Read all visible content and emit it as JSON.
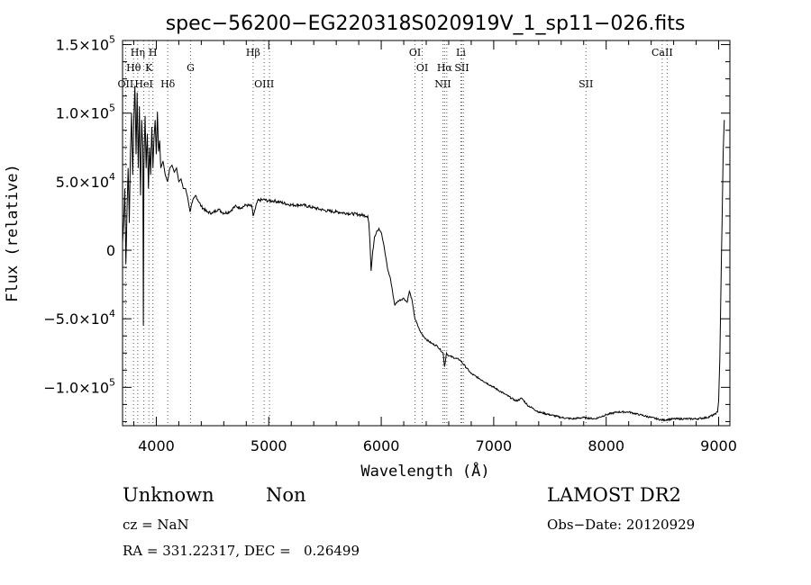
{
  "chart_data": {
    "type": "line",
    "title": "spec−56200−EG220318S020919V_1_sp11−026.fits",
    "xlabel": "Wavelength (Å)",
    "ylabel": "Flux (relative)",
    "xlim": [
      3700,
      9100
    ],
    "ylim": [
      -128000,
      153000
    ],
    "xticks": [
      4000,
      5000,
      6000,
      7000,
      8000,
      9000
    ],
    "yticks": [
      {
        "value": 150000,
        "label": "1.5×10",
        "exp": "5"
      },
      {
        "value": 100000,
        "label": "1.0×10",
        "exp": "5"
      },
      {
        "value": 50000,
        "label": "5.0×10",
        "exp": "4"
      },
      {
        "value": 0,
        "label": "0",
        "exp": ""
      },
      {
        "value": -50000,
        "label": "−5.0×10",
        "exp": "4"
      },
      {
        "value": -100000,
        "label": "−1.0×10",
        "exp": "5"
      }
    ],
    "lines": [
      {
        "wl": 3727,
        "label": "OII",
        "row": 3
      },
      {
        "wl": 3798,
        "label": "Hθ",
        "row": 2
      },
      {
        "wl": 3835,
        "label": "Hη",
        "row": 1
      },
      {
        "wl": 3889,
        "label": "HeI",
        "row": 3
      },
      {
        "wl": 3934,
        "label": "K",
        "row": 2
      },
      {
        "wl": 3970,
        "label": "H",
        "row": 1
      },
      {
        "wl": 4102,
        "label": "Hδ",
        "row": 3
      },
      {
        "wl": 4305,
        "label": "G",
        "row": 2
      },
      {
        "wl": 4861,
        "label": "Hβ",
        "row": 1
      },
      {
        "wl": 4959,
        "label": "OIII",
        "row": 3
      },
      {
        "wl": 5007,
        "label": "",
        "row": 0
      },
      {
        "wl": 6300,
        "label": "OI",
        "row": 1
      },
      {
        "wl": 6364,
        "label": "OI",
        "row": 2
      },
      {
        "wl": 6548,
        "label": "NII",
        "row": 3
      },
      {
        "wl": 6563,
        "label": "Hα",
        "row": 2
      },
      {
        "wl": 6583,
        "label": "",
        "row": 0
      },
      {
        "wl": 6708,
        "label": "Li",
        "row": 1
      },
      {
        "wl": 6716,
        "label": "SII",
        "row": 2
      },
      {
        "wl": 6731,
        "label": "",
        "row": 0
      },
      {
        "wl": 7820,
        "label": "SII",
        "row": 3
      },
      {
        "wl": 8498,
        "label": "CaII",
        "row": 1
      },
      {
        "wl": 8542,
        "label": "",
        "row": 0
      }
    ],
    "spectrum": [
      [
        3700,
        5000
      ],
      [
        3710,
        20000
      ],
      [
        3720,
        45000
      ],
      [
        3730,
        -10000
      ],
      [
        3740,
        30000
      ],
      [
        3750,
        60000
      ],
      [
        3760,
        20000
      ],
      [
        3770,
        70000
      ],
      [
        3780,
        100000
      ],
      [
        3790,
        55000
      ],
      [
        3800,
        95000
      ],
      [
        3810,
        120000
      ],
      [
        3820,
        70000
      ],
      [
        3830,
        115000
      ],
      [
        3840,
        60000
      ],
      [
        3850,
        105000
      ],
      [
        3860,
        40000
      ],
      [
        3870,
        95000
      ],
      [
        3880,
        75000
      ],
      [
        3885,
        -55000
      ],
      [
        3890,
        60000
      ],
      [
        3900,
        98000
      ],
      [
        3910,
        60000
      ],
      [
        3920,
        85000
      ],
      [
        3930,
        45000
      ],
      [
        3940,
        75000
      ],
      [
        3950,
        55000
      ],
      [
        3960,
        90000
      ],
      [
        3970,
        60000
      ],
      [
        3980,
        82000
      ],
      [
        3990,
        95000
      ],
      [
        4000,
        70000
      ],
      [
        4010,
        101000
      ],
      [
        4020,
        72000
      ],
      [
        4030,
        80000
      ],
      [
        4040,
        60000
      ],
      [
        4060,
        65000
      ],
      [
        4080,
        55000
      ],
      [
        4100,
        50000
      ],
      [
        4120,
        60000
      ],
      [
        4140,
        62000
      ],
      [
        4160,
        57000
      ],
      [
        4180,
        60000
      ],
      [
        4200,
        50000
      ],
      [
        4220,
        52000
      ],
      [
        4240,
        45000
      ],
      [
        4260,
        45000
      ],
      [
        4280,
        38000
      ],
      [
        4300,
        28000
      ],
      [
        4320,
        35000
      ],
      [
        4350,
        40000
      ],
      [
        4400,
        32000
      ],
      [
        4450,
        28000
      ],
      [
        4500,
        27000
      ],
      [
        4550,
        30000
      ],
      [
        4600,
        27000
      ],
      [
        4650,
        28000
      ],
      [
        4700,
        32000
      ],
      [
        4750,
        31000
      ],
      [
        4800,
        33000
      ],
      [
        4850,
        32000
      ],
      [
        4861,
        25000
      ],
      [
        4880,
        30000
      ],
      [
        4900,
        36000
      ],
      [
        4950,
        37000
      ],
      [
        5000,
        36000
      ],
      [
        5050,
        36000
      ],
      [
        5100,
        35000
      ],
      [
        5200,
        33000
      ],
      [
        5300,
        33000
      ],
      [
        5400,
        31000
      ],
      [
        5500,
        29000
      ],
      [
        5600,
        28000
      ],
      [
        5700,
        27000
      ],
      [
        5800,
        26000
      ],
      [
        5880,
        25000
      ],
      [
        5890,
        20000
      ],
      [
        5900,
        5000
      ],
      [
        5910,
        -15000
      ],
      [
        5920,
        -5000
      ],
      [
        5940,
        10000
      ],
      [
        5960,
        14000
      ],
      [
        5980,
        16000
      ],
      [
        6000,
        13000
      ],
      [
        6020,
        5000
      ],
      [
        6040,
        -5000
      ],
      [
        6060,
        -15000
      ],
      [
        6080,
        -20000
      ],
      [
        6100,
        -30000
      ],
      [
        6120,
        -40000
      ],
      [
        6150,
        -37000
      ],
      [
        6200,
        -35000
      ],
      [
        6230,
        -38000
      ],
      [
        6250,
        -30000
      ],
      [
        6270,
        -35000
      ],
      [
        6300,
        -50000
      ],
      [
        6350,
        -60000
      ],
      [
        6400,
        -65000
      ],
      [
        6450,
        -68000
      ],
      [
        6500,
        -70000
      ],
      [
        6550,
        -75000
      ],
      [
        6563,
        -85000
      ],
      [
        6580,
        -75000
      ],
      [
        6600,
        -77000
      ],
      [
        6700,
        -80000
      ],
      [
        6800,
        -90000
      ],
      [
        6900,
        -95000
      ],
      [
        7000,
        -100000
      ],
      [
        7100,
        -105000
      ],
      [
        7200,
        -110000
      ],
      [
        7250,
        -108000
      ],
      [
        7300,
        -113000
      ],
      [
        7400,
        -118000
      ],
      [
        7500,
        -120000
      ],
      [
        7600,
        -122000
      ],
      [
        7700,
        -123000
      ],
      [
        7800,
        -122000
      ],
      [
        7900,
        -123000
      ],
      [
        8000,
        -120000
      ],
      [
        8100,
        -118000
      ],
      [
        8200,
        -118000
      ],
      [
        8300,
        -120000
      ],
      [
        8400,
        -122000
      ],
      [
        8500,
        -124000
      ],
      [
        8600,
        -123000
      ],
      [
        8700,
        -123000
      ],
      [
        8800,
        -123000
      ],
      [
        8900,
        -122000
      ],
      [
        8960,
        -120000
      ],
      [
        8990,
        -118000
      ],
      [
        9000,
        -110000
      ],
      [
        9010,
        -80000
      ],
      [
        9020,
        -30000
      ],
      [
        9030,
        20000
      ],
      [
        9040,
        70000
      ],
      [
        9050,
        95000
      ]
    ]
  },
  "info": {
    "object_class": "Unknown",
    "object_subclass": "Non",
    "survey": "LAMOST DR2",
    "redshift": "cz = NaN",
    "obs_date": "Obs−Date: 20120929",
    "coords": "RA = 331.22317, DEC =   0.26499"
  }
}
